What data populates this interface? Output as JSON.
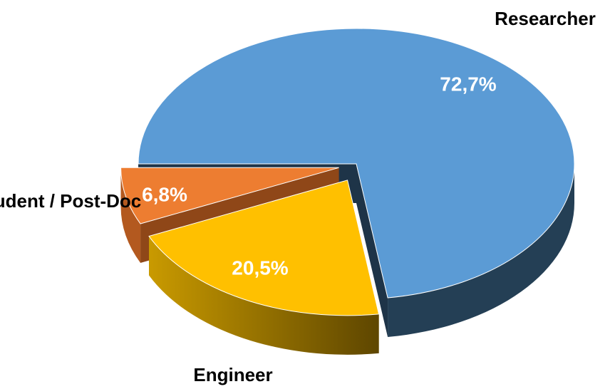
{
  "chart_data": {
    "type": "pie",
    "categories": [
      "Researcher",
      "Student / Post-Doc",
      "Engineer"
    ],
    "values": [
      72.7,
      20.5,
      6.8
    ],
    "value_labels": [
      "72,7%",
      "20,5%",
      "6,8%"
    ],
    "colors": [
      "#5b9bd5",
      "#ffc000",
      "#ed7d31"
    ]
  }
}
